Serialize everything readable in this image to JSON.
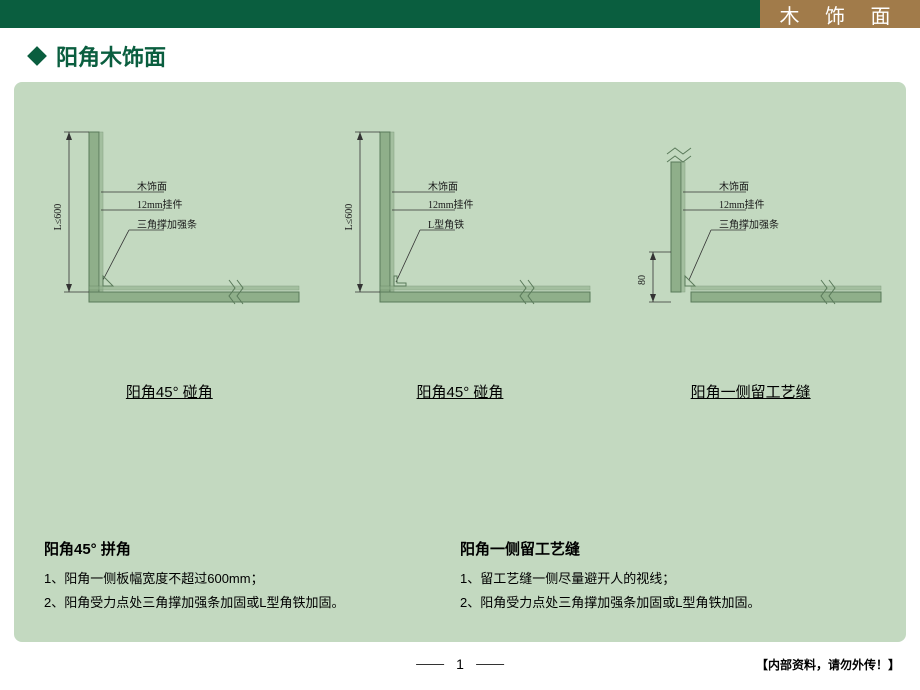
{
  "colors": {
    "header_green": "#0a5e3f",
    "header_brown": "#a17b4a",
    "accent": "#0a5e3f",
    "panel_bg": "#c3d9c0",
    "diagram_outline": "#5a7a5a",
    "diagram_fill": "#8faf8a",
    "text_dark": "#1a1a1a"
  },
  "header": {
    "category": "木 饰 面"
  },
  "title": "阳角木饰面",
  "diagrams": [
    {
      "caption": "阳角45° 碰角",
      "dim_label": "L≤600",
      "callouts": [
        "木饰面",
        "12mm挂件",
        "三角撑加强条"
      ]
    },
    {
      "caption": "阳角45° 碰角",
      "dim_label": "L≤600",
      "callouts": [
        "木饰面",
        "12mm挂件",
        "L型角铁"
      ]
    },
    {
      "caption": "阳角一侧留工艺缝",
      "dim_label": "80",
      "callouts": [
        "木饰面",
        "12mm挂件",
        "三角撑加强条"
      ]
    }
  ],
  "notes": [
    {
      "title": "阳角45° 拼角",
      "lines": [
        "1、阳角一侧板幅宽度不超过600mm；",
        "2、阳角受力点处三角撑加强条加固或L型角铁加固。"
      ]
    },
    {
      "title": "阳角一侧留工艺缝",
      "lines": [
        "1、留工艺缝一侧尽量避开人的视线；",
        "2、阳角受力点处三角撑加强条加固或L型角铁加固。"
      ]
    }
  ],
  "footer": {
    "page": "1",
    "confidential": "【内部资料，请勿外传！】"
  }
}
